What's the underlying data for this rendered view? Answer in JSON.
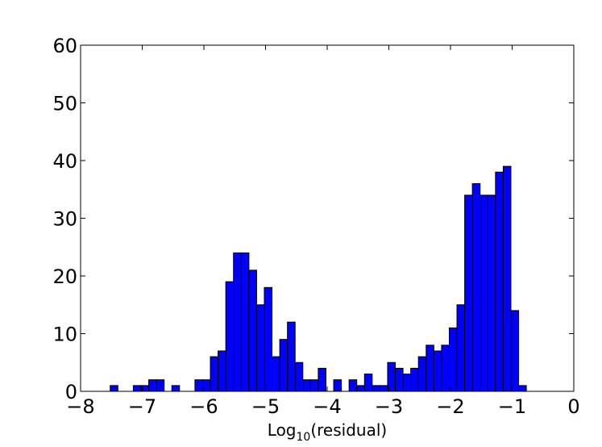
{
  "chart_data": {
    "type": "histogram",
    "xlabel": {
      "base": "Log",
      "sub": "10",
      "rest": "(residual)"
    },
    "bins": [
      -7.52,
      -7.395,
      -7.27,
      -7.145,
      -7.02,
      -6.895,
      -6.77,
      -6.645,
      -6.52,
      -6.395,
      -6.27,
      -6.145,
      -6.02,
      -5.895,
      -5.77,
      -5.645,
      -5.52,
      -5.395,
      -5.27,
      -5.145,
      -5.02,
      -4.895,
      -4.77,
      -4.645,
      -4.52,
      -4.395,
      -4.27,
      -4.145,
      -4.02,
      -3.895,
      -3.77,
      -3.645,
      -3.52,
      -3.395,
      -3.27,
      -3.145,
      -3.02,
      -2.895,
      -2.77,
      -2.645,
      -2.52,
      -2.395,
      -2.27,
      -2.145,
      -2.02,
      -1.895,
      -1.77,
      -1.645,
      -1.52,
      -1.395,
      -1.27,
      -1.145,
      -1.02,
      -0.895,
      -0.77
    ],
    "values": [
      1,
      0,
      0,
      1,
      1,
      2,
      2,
      0,
      1,
      0,
      0,
      2,
      2,
      6,
      7,
      19,
      24,
      24,
      21,
      15,
      18,
      6,
      9,
      12,
      5,
      2,
      2,
      4,
      0,
      2,
      0,
      2,
      1,
      3,
      1,
      1,
      5,
      4,
      3,
      4,
      6,
      8,
      7,
      8,
      11,
      15,
      34,
      36,
      34,
      34,
      38,
      39,
      14,
      1
    ],
    "color": "#0000ff",
    "xlim": [
      -8,
      0
    ],
    "xticks": [
      {
        "value": -8,
        "label": "−8"
      },
      {
        "value": -7,
        "label": "−7"
      },
      {
        "value": -6,
        "label": "−6"
      },
      {
        "value": -5,
        "label": "−5"
      },
      {
        "value": -4,
        "label": "−4"
      },
      {
        "value": -3,
        "label": "−3"
      },
      {
        "value": -2,
        "label": "−2"
      },
      {
        "value": -1,
        "label": "−1"
      },
      0
    ],
    "ylim": [
      0,
      60
    ],
    "yticks": [
      0,
      10,
      20,
      30,
      40,
      50,
      60
    ]
  }
}
